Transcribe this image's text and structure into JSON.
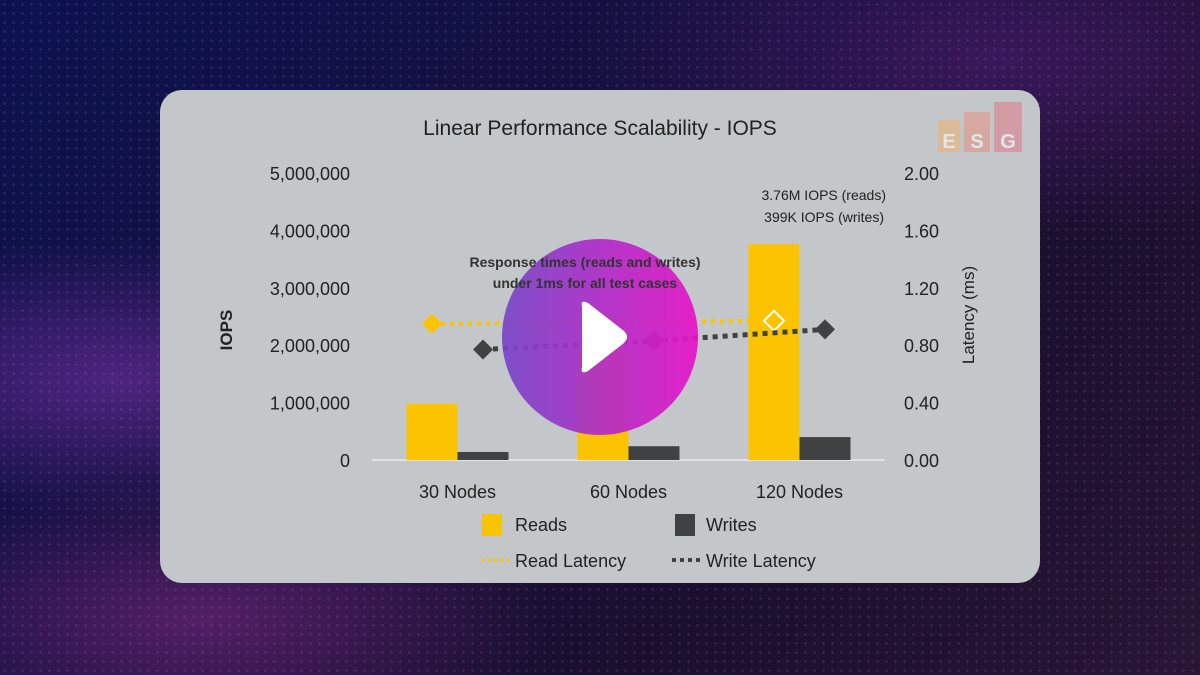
{
  "chart_data": {
    "type": "bar",
    "title": "Linear Performance Scalability - IOPS",
    "categories": [
      "30  Nodes",
      "60  Nodes",
      "120 Nodes"
    ],
    "ylabel": "IOPS",
    "y2label": "Latency (ms)",
    "ylim": [
      0,
      5000000
    ],
    "y2lim": [
      0,
      2.0
    ],
    "yticks": [
      "5,000,000",
      "4,000,000",
      "3,000,000",
      "2,000,000",
      "1,000,000",
      "0"
    ],
    "y2ticks": [
      "2.00",
      "1.60",
      "1.20",
      "0.80",
      "0.40",
      "0.00"
    ],
    "series": [
      {
        "name": "Reads",
        "kind": "bar",
        "axis": "left",
        "color": "#fcc400",
        "values": [
          980000,
          1900000,
          3760000
        ]
      },
      {
        "name": "Writes",
        "kind": "bar",
        "axis": "left",
        "color": "#404142",
        "values": [
          140000,
          240000,
          399000
        ]
      },
      {
        "name": "Read Latency",
        "kind": "line",
        "axis": "right",
        "color": "#fcc400",
        "values": [
          0.95,
          0.96,
          0.97
        ]
      },
      {
        "name": "Write Latency",
        "kind": "line",
        "axis": "right",
        "color": "#404142",
        "values": [
          0.77,
          0.83,
          0.91
        ]
      }
    ],
    "annotations": {
      "peak_line1": "3.76M IOPS (reads)",
      "peak_line2": "399K IOPS (writes)",
      "note_line1": "Response times (reads and writes)",
      "note_line2": "under 1ms for all test cases"
    },
    "legend": "bottom",
    "grid": false
  },
  "logo": "ESG",
  "player": {
    "play_icon": "play-icon"
  }
}
